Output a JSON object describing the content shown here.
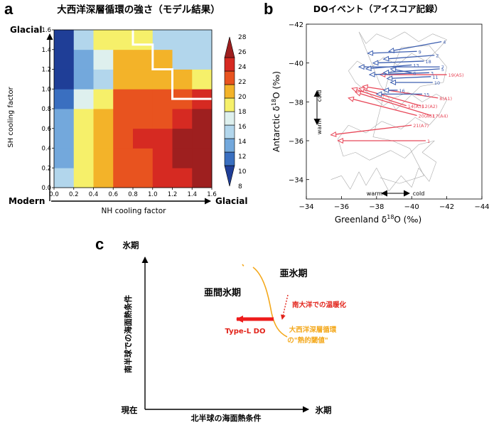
{
  "panels": {
    "a": {
      "letter": "a",
      "title": "大西洋深層循環の強さ（モデル結果）",
      "ylabel": "SH cooling factor",
      "xlabel": "NH cooling factor",
      "corner_left": "Modern",
      "corner_right": "Glacial",
      "corner_top": "Glacial",
      "x_ticks": [
        "0.0",
        "0.2",
        "0.4",
        "0.6",
        "0.8",
        "1.0",
        "1.2",
        "1.4",
        "1.6"
      ],
      "y_ticks": [
        "0.0",
        "0.2",
        "0.4",
        "0.6",
        "0.8",
        "1.0",
        "1.2",
        "1.4",
        "1.6"
      ],
      "colorbar_ticks": [
        "28",
        "26",
        "24",
        "22",
        "20",
        "18",
        "16",
        "14",
        "12",
        "10",
        "8"
      ]
    },
    "b": {
      "letter": "b",
      "title": "DOイベント（アイスコア記録）",
      "xlabel": "Greenland δ18O (‰)",
      "ylabel": "Antarctic δ18O (‰)",
      "x_ticks": [
        "−34",
        "−36",
        "−38",
        "−40",
        "−42",
        "−44"
      ],
      "y_ticks": [
        "−42",
        "−40",
        "−38",
        "−36",
        "−34"
      ],
      "cold_label_v": "cold",
      "warm_label_v": "warm",
      "warm_label_h": "warm",
      "cold_label_h": "cold"
    },
    "c": {
      "letter": "c",
      "y_top": "氷期",
      "x_right": "氷期",
      "origin": "現在",
      "xlabel": "北半球の海面熱条件",
      "ylabel": "南半球での海面熱条件",
      "region_left": "亜間氷期",
      "region_right": "亜氷期",
      "south_warming": "南大洋での温暖化",
      "type_l": "Type-L DO",
      "threshold_line1": "大西洋深層循環",
      "threshold_line2": "の\"熱的閾値\""
    }
  },
  "chart_data": [
    {
      "type": "heatmap",
      "title": "大西洋深層循環の強さ（モデル結果）",
      "xlabel": "NH cooling factor",
      "ylabel": "SH cooling factor",
      "xlim": [
        0.0,
        1.6
      ],
      "ylim": [
        0.0,
        1.6
      ],
      "cell_size": 0.2,
      "colorbar_range": [
        8,
        28
      ],
      "colorbar_levels": [
        10,
        12,
        14,
        16,
        18,
        20,
        22,
        24,
        26,
        28
      ],
      "colorbar_colors": [
        "#1f3e97",
        "#3a6fc0",
        "#73a8dc",
        "#b2d6ec",
        "#def0ee",
        "#f6f06a",
        "#f3b329",
        "#e8531f",
        "#d62a22",
        "#9e1f1f"
      ],
      "rows_bottom_to_top": [
        [
          16,
          20,
          22,
          24,
          24,
          26,
          26,
          28
        ],
        [
          14,
          20,
          22,
          24,
          24,
          26,
          28,
          28
        ],
        [
          14,
          20,
          22,
          24,
          26,
          26,
          28,
          28
        ],
        [
          14,
          20,
          22,
          24,
          24,
          24,
          26,
          28
        ],
        [
          12,
          18,
          20,
          24,
          24,
          24,
          24,
          26
        ],
        [
          8,
          14,
          16,
          22,
          22,
          22,
          22,
          20
        ],
        [
          8,
          14,
          18,
          22,
          22,
          22,
          16,
          16
        ],
        [
          8,
          16,
          20,
          20,
          20,
          16,
          16,
          16
        ]
      ]
    },
    {
      "type": "scatter",
      "title": "DOイベント（アイスコア記録）",
      "xlabel": "Greenland δ18O (‰)",
      "ylabel": "Antarctic δ18O (‰)",
      "xlim": [
        -34,
        -44
      ],
      "ylim": [
        -42,
        -33
      ],
      "series": [
        {
          "name": "red",
          "color": "#e8495a",
          "arrows": [
            {
              "label": "1",
              "from": [
                -40.8,
                -36.0
              ],
              "to": [
                -35.8,
                -36.0
              ]
            },
            {
              "label": "21(A7)",
              "from": [
                -40.0,
                -36.8
              ],
              "to": [
                -35.4,
                -36.3
              ]
            },
            {
              "label": "20(A6)",
              "from": [
                -40.3,
                -37.3
              ],
              "to": [
                -36.4,
                -38.2
              ]
            },
            {
              "label": "17(A4)",
              "from": [
                -41.1,
                -37.3
              ],
              "to": [
                -36.8,
                -38.5
              ]
            },
            {
              "label": "14(A3)",
              "from": [
                -39.7,
                -37.8
              ],
              "to": [
                -36.6,
                -38.7
              ]
            },
            {
              "label": "12(A2)",
              "from": [
                -40.5,
                -37.8
              ],
              "to": [
                -37.0,
                -38.7
              ]
            },
            {
              "label": "8(A1)",
              "from": [
                -41.5,
                -38.2
              ],
              "to": [
                -37.2,
                -38.8
              ]
            },
            {
              "label": "19(A5)",
              "from": [
                -42.0,
                -39.4
              ],
              "to": [
                -38.2,
                -39.4
              ]
            }
          ]
        },
        {
          "name": "blue",
          "color": "#3d5fb0",
          "arrows": [
            {
              "label": "4",
              "from": [
                -41.7,
                -41.1
              ],
              "to": [
                -38.7,
                -40.6
              ]
            },
            {
              "label": "9",
              "from": [
                -40.3,
                -40.6
              ],
              "to": [
                -37.5,
                -40.5
              ]
            },
            {
              "label": "18",
              "from": [
                -40.7,
                -40.1
              ],
              "to": [
                -37.8,
                -40.0
              ]
            },
            {
              "label": "2",
              "from": [
                -41.3,
                -40.4
              ],
              "to": [
                -38.4,
                -40.2
              ]
            },
            {
              "label": "7",
              "from": [
                -41.6,
                -39.8
              ],
              "to": [
                -37.0,
                -39.8
              ]
            },
            {
              "label": "13",
              "from": [
                -40.0,
                -39.9
              ],
              "to": [
                -37.4,
                -39.7
              ]
            },
            {
              "label": "3",
              "from": [
                -41.0,
                -39.5
              ],
              "to": [
                -37.6,
                -39.4
              ]
            },
            {
              "label": "5",
              "from": [
                -41.6,
                -39.7
              ],
              "to": [
                -38.4,
                -39.5
              ]
            },
            {
              "label": "6",
              "from": [
                -40.0,
                -39.5
              ],
              "to": [
                -38.8,
                -39.7
              ]
            },
            {
              "label": "11",
              "from": [
                -41.1,
                -39.3
              ],
              "to": [
                -38.6,
                -39.2
              ]
            },
            {
              "label": "10",
              "from": [
                -41.2,
                -39.0
              ],
              "to": [
                -38.8,
                -39.0
              ]
            },
            {
              "label": "16",
              "from": [
                -39.2,
                -38.6
              ],
              "to": [
                -38.4,
                -38.6
              ]
            },
            {
              "label": "15",
              "from": [
                -40.6,
                -38.4
              ],
              "to": [
                -38.0,
                -38.4
              ]
            }
          ]
        },
        {
          "name": "trajectory",
          "color": "#aaaaaa",
          "points": [
            [
              -35.4,
              -34.0
            ],
            [
              -36.0,
              -34.2
            ],
            [
              -36.5,
              -33.5
            ],
            [
              -37.0,
              -34.4
            ],
            [
              -37.4,
              -33.7
            ],
            [
              -38.0,
              -34.6
            ],
            [
              -38.7,
              -33.4
            ],
            [
              -39.4,
              -34.2
            ],
            [
              -40.0,
              -33.6
            ],
            [
              -40.4,
              -34.6
            ],
            [
              -41.0,
              -33.9
            ],
            [
              -41.4,
              -34.9
            ],
            [
              -40.6,
              -35.4
            ],
            [
              -41.3,
              -36.0
            ],
            [
              -40.4,
              -35.8
            ],
            [
              -39.6,
              -35.1
            ],
            [
              -38.8,
              -35.5
            ],
            [
              -37.6,
              -35.0
            ],
            [
              -36.8,
              -35.4
            ],
            [
              -36.1,
              -35.2
            ],
            [
              -35.8,
              -36.1
            ],
            [
              -36.4,
              -36.8
            ],
            [
              -37.4,
              -36.4
            ],
            [
              -38.3,
              -37.0
            ],
            [
              -39.4,
              -36.6
            ],
            [
              -40.2,
              -37.2
            ],
            [
              -41.0,
              -36.8
            ],
            [
              -41.6,
              -37.4
            ],
            [
              -42.0,
              -38.1
            ],
            [
              -41.4,
              -38.4
            ],
            [
              -40.6,
              -38.0
            ],
            [
              -39.8,
              -38.5
            ],
            [
              -39.0,
              -38.2
            ],
            [
              -38.4,
              -37.8
            ],
            [
              -37.6,
              -38.4
            ],
            [
              -36.8,
              -39.0
            ],
            [
              -36.4,
              -39.6
            ],
            [
              -36.9,
              -40.1
            ],
            [
              -37.6,
              -39.7
            ],
            [
              -38.4,
              -40.3
            ],
            [
              -39.2,
              -39.9
            ],
            [
              -40.0,
              -40.5
            ],
            [
              -40.8,
              -40.1
            ],
            [
              -41.5,
              -40.7
            ],
            [
              -42.0,
              -41.2
            ],
            [
              -41.2,
              -41.5
            ],
            [
              -40.4,
              -41.1
            ],
            [
              -39.6,
              -41.6
            ],
            [
              -38.8,
              -41.2
            ],
            [
              -38.0,
              -41.5
            ],
            [
              -37.4,
              -41.0
            ],
            [
              -37.0,
              -41.6
            ],
            [
              -38.2,
              -38.9
            ],
            [
              -39.1,
              -37.6
            ],
            [
              -40.5,
              -38.8
            ],
            [
              -41.8,
              -39.0
            ],
            [
              -42.0,
              -39.8
            ],
            [
              -41.0,
              -40.9
            ],
            [
              -39.4,
              -40.8
            ],
            [
              -38.6,
              -39.0
            ],
            [
              -37.8,
              -36.2
            ],
            [
              -38.9,
              -36.0
            ],
            [
              -39.9,
              -35.6
            ],
            [
              -40.7,
              -34.2
            ],
            [
              -39.3,
              -33.8
            ],
            [
              -38.2,
              -34.1
            ]
          ]
        }
      ]
    },
    {
      "type": "diagram",
      "xlabel": "北半球の海面熱条件",
      "ylabel": "南半球での海面熱条件",
      "x_axis_end": "氷期",
      "y_axis_end": "氷期",
      "origin": "現在",
      "regions": [
        "亜間氷期",
        "亜氷期"
      ],
      "threshold_label": "大西洋深層循環の\"熱的閾値\"",
      "arrow_label": "Type-L DO",
      "warming_label": "南大洋での温暖化"
    }
  ]
}
